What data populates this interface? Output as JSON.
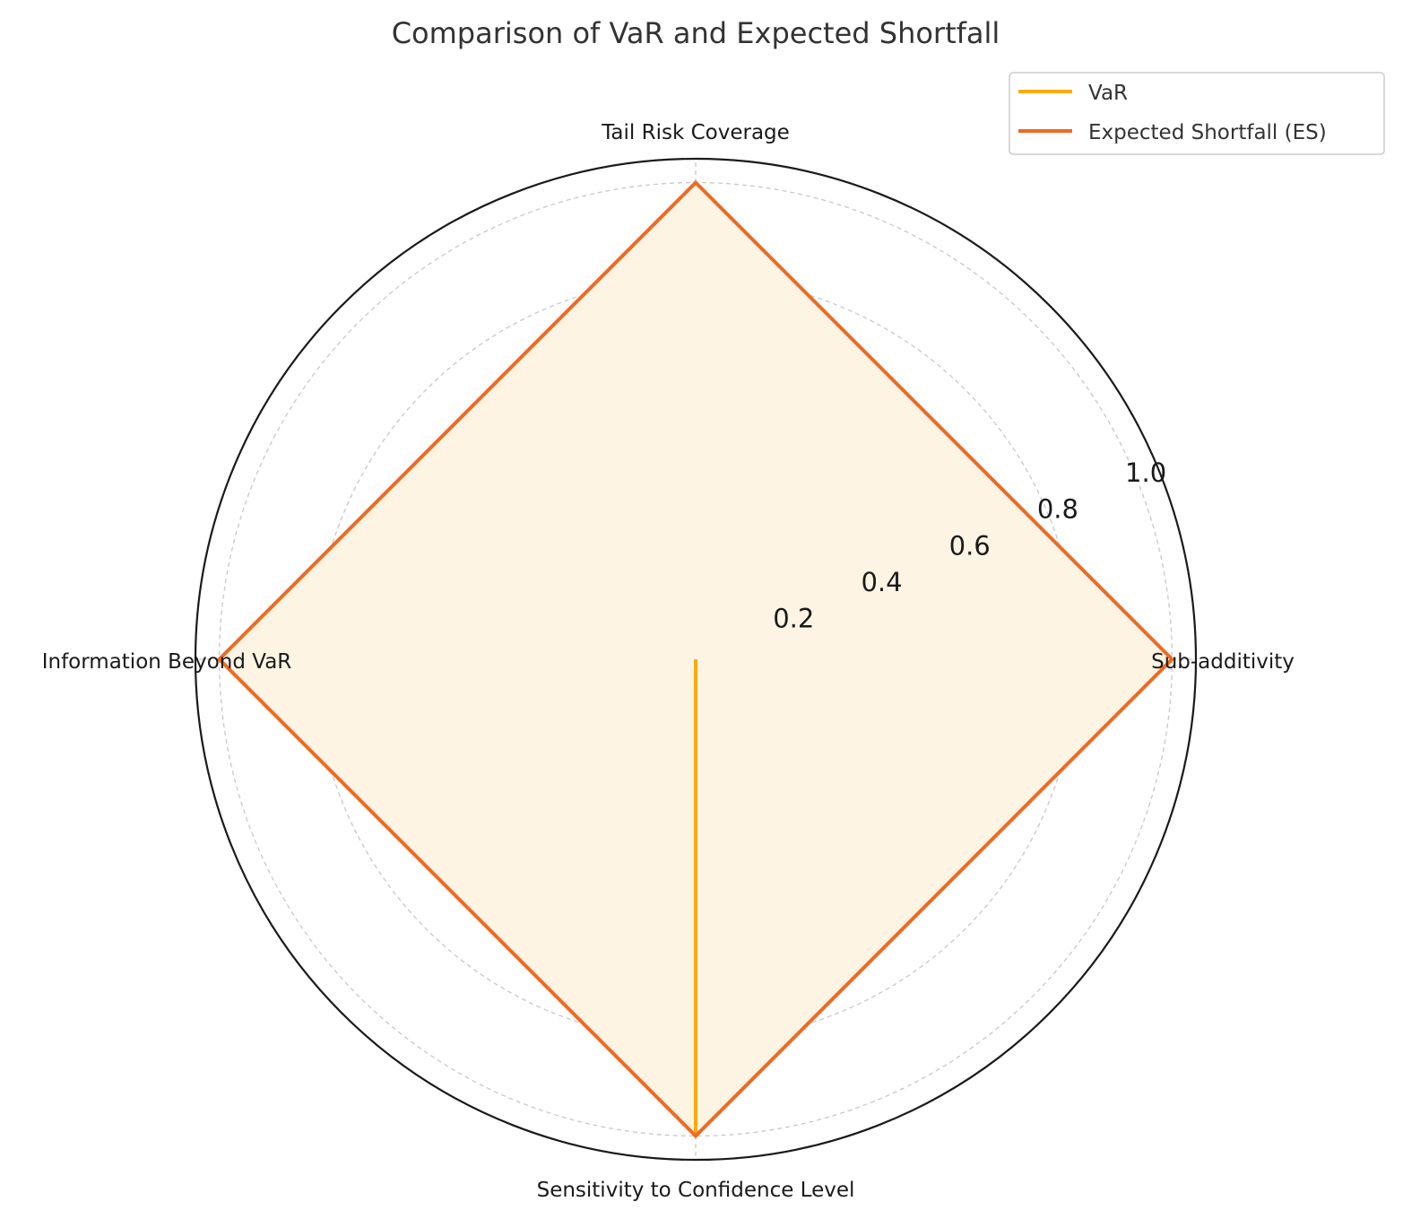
{
  "chart_data": {
    "type": "radar",
    "title": "Comparison of VaR and Expected Shortfall",
    "axes": [
      "Tail Risk Coverage",
      "Information Beyond VaR",
      "Sensitivity to Confidence Level",
      "Sub-additivity"
    ],
    "rlim": [
      0,
      1.05
    ],
    "rticks": [
      0.2,
      0.4,
      0.6,
      0.8,
      1.0
    ],
    "rtick_labels": [
      "0.2",
      "0.4",
      "0.6",
      "0.8",
      "1.0"
    ],
    "grid": true,
    "legend_position": "top-right",
    "series": [
      {
        "name": "VaR",
        "values": [
          0,
          0,
          1,
          0
        ],
        "color": "#FFAA00",
        "fill": false
      },
      {
        "name": "Expected Shortfall (ES)",
        "values": [
          1,
          1,
          1,
          1
        ],
        "color": "#EE6A22",
        "fill": true,
        "fill_color": "#FDF4E4"
      }
    ]
  }
}
